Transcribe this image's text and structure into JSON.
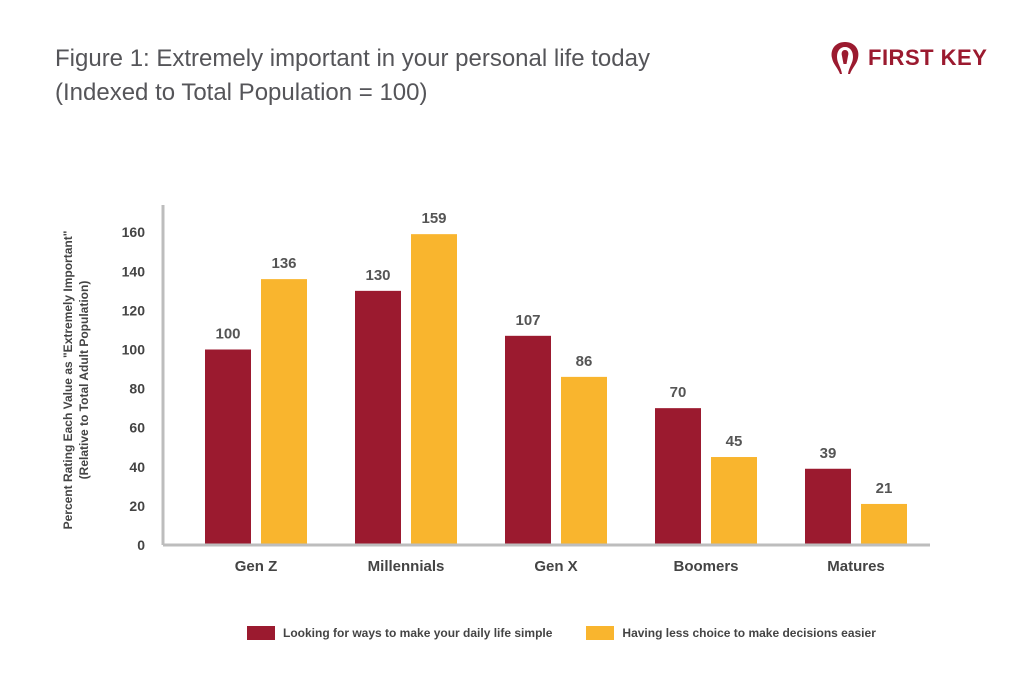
{
  "header": {
    "title_line1": "Figure 1: Extremely important in your personal life today",
    "title_line2": "(Indexed to Total Population = 100)"
  },
  "logo": {
    "text": "FIRST KEY",
    "color": "#9b1a2f"
  },
  "chart_data": {
    "type": "bar",
    "categories": [
      "Gen Z",
      "Millennials",
      "Gen X",
      "Boomers",
      "Matures"
    ],
    "series": [
      {
        "name": "Looking for ways to make your daily life simple",
        "values": [
          100,
          130,
          107,
          70,
          39
        ],
        "color": "#9b1a2f"
      },
      {
        "name": "Having less choice to make decisions easier",
        "values": [
          136,
          159,
          86,
          45,
          21
        ],
        "color": "#f9b52e"
      }
    ],
    "ylabel_line1": "Percent Rating Each Value as \"Extremely Important\"",
    "ylabel_line2": "(Relative to Total Adult Population)",
    "yticks": [
      0,
      20,
      40,
      60,
      80,
      100,
      120,
      140,
      160
    ],
    "ylim": [
      0,
      170
    ],
    "grid": false,
    "legend_position": "bottom"
  }
}
